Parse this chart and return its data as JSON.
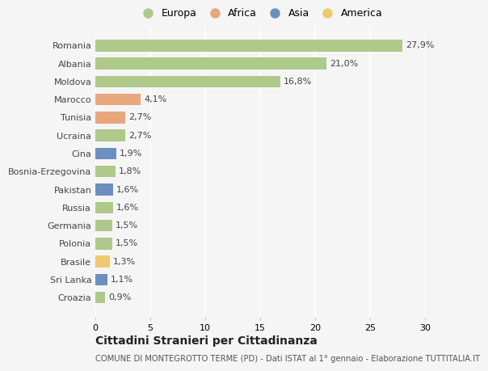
{
  "countries": [
    "Romania",
    "Albania",
    "Moldova",
    "Marocco",
    "Tunisia",
    "Ucraina",
    "Cina",
    "Bosnia-Erzegovina",
    "Pakistan",
    "Russia",
    "Germania",
    "Polonia",
    "Brasile",
    "Sri Lanka",
    "Croazia"
  ],
  "values": [
    27.9,
    21.0,
    16.8,
    4.1,
    2.7,
    2.7,
    1.9,
    1.8,
    1.6,
    1.6,
    1.5,
    1.5,
    1.3,
    1.1,
    0.9
  ],
  "labels": [
    "27,9%",
    "21,0%",
    "16,8%",
    "4,1%",
    "2,7%",
    "2,7%",
    "1,9%",
    "1,8%",
    "1,6%",
    "1,6%",
    "1,5%",
    "1,5%",
    "1,3%",
    "1,1%",
    "0,9%"
  ],
  "continents": [
    "Europa",
    "Europa",
    "Europa",
    "Africa",
    "Africa",
    "Europa",
    "Asia",
    "Europa",
    "Asia",
    "Europa",
    "Europa",
    "Europa",
    "America",
    "Asia",
    "Europa"
  ],
  "colors": {
    "Europa": "#aec98a",
    "Africa": "#e8a87c",
    "Asia": "#6b8fbe",
    "America": "#f0c96e"
  },
  "xlim": [
    0,
    30
  ],
  "xticks": [
    0,
    5,
    10,
    15,
    20,
    25,
    30
  ],
  "title": "Cittadini Stranieri per Cittadinanza",
  "subtitle": "COMUNE DI MONTEGROTTO TERME (PD) - Dati ISTAT al 1° gennaio - Elaborazione TUTTITALIA.IT",
  "bg_color": "#f5f5f5",
  "grid_color": "#ffffff",
  "legend_entries": [
    "Europa",
    "Africa",
    "Asia",
    "America"
  ]
}
